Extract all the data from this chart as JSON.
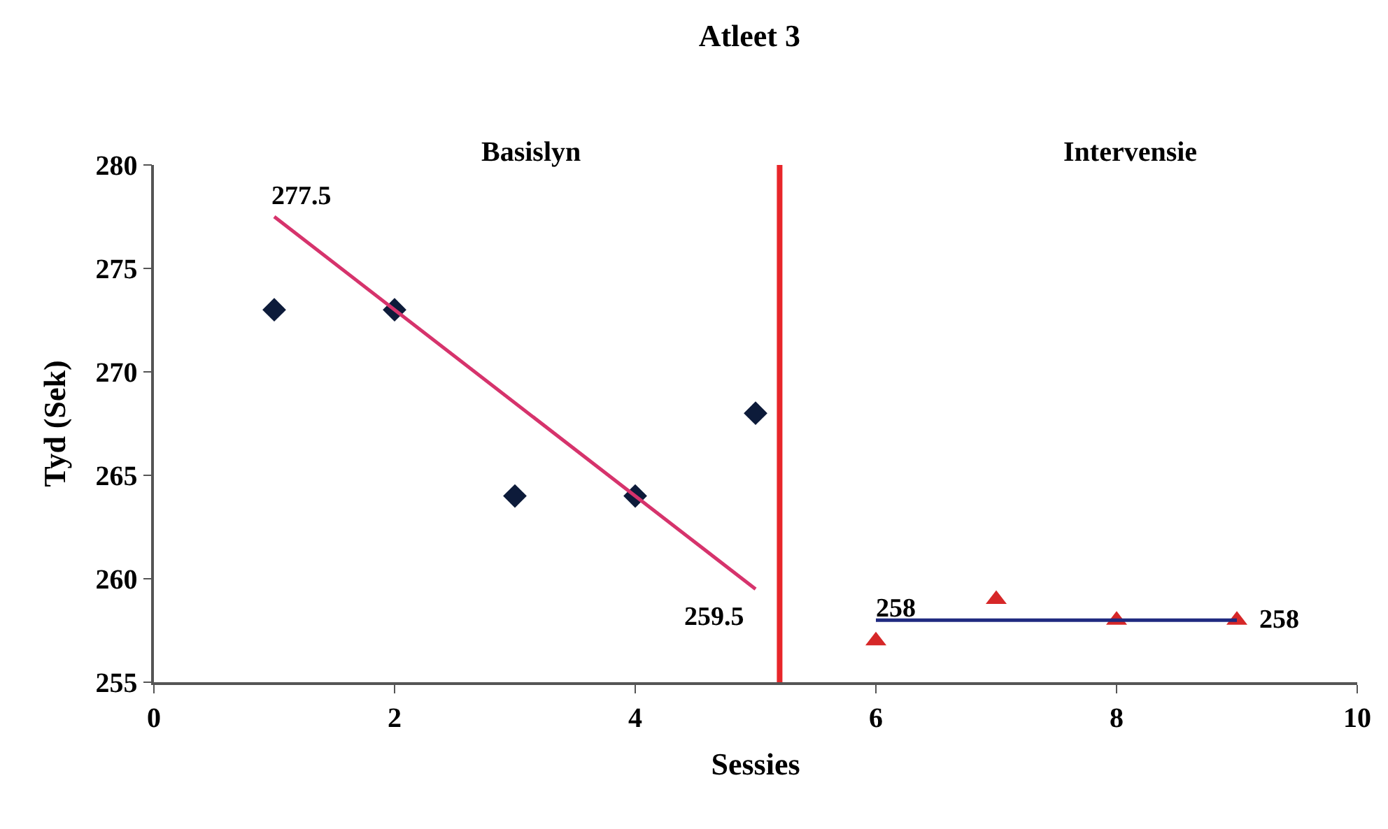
{
  "chart_data": {
    "type": "scatter",
    "title": "Atleet 3",
    "xlabel": "Sessies",
    "ylabel": "Tyd (Sek)",
    "xlim": [
      0,
      10
    ],
    "xticks": [
      0,
      2,
      4,
      6,
      8,
      10
    ],
    "ylim": [
      255,
      280
    ],
    "yticks": [
      255,
      260,
      265,
      270,
      275,
      280
    ],
    "series": [
      {
        "marker": "diamond",
        "color": "#0d1b3a",
        "x": [
          1,
          2,
          3,
          4,
          5
        ],
        "values": [
          273,
          273,
          264,
          264,
          268
        ]
      },
      {
        "type": "line",
        "marker": "none",
        "color": "#d6336c",
        "x": [
          1,
          5
        ],
        "values": [
          277.5,
          259.5
        ]
      },
      {
        "marker": "triangle",
        "color": "#d62728",
        "x": [
          6,
          7,
          8,
          9
        ],
        "values": [
          257,
          259,
          258,
          258
        ]
      },
      {
        "type": "line",
        "marker": "none",
        "color": "#1f2a80",
        "x": [
          6,
          9
        ],
        "values": [
          258,
          258
        ]
      }
    ],
    "ref_lines": [
      {
        "axis": "x",
        "value": 5.2,
        "label": null,
        "color": "#e8262a",
        "line_style": "solid"
      }
    ],
    "annotations": [
      "Basislyn",
      "Intervensie",
      {
        "text": "277.5",
        "x": 1,
        "y": 277.5
      },
      {
        "text": "259.5",
        "x": 5,
        "y": 259.5
      },
      {
        "text": "258",
        "x": 6,
        "y": 258
      },
      {
        "text": "258",
        "x": 9,
        "y": 258
      }
    ]
  }
}
